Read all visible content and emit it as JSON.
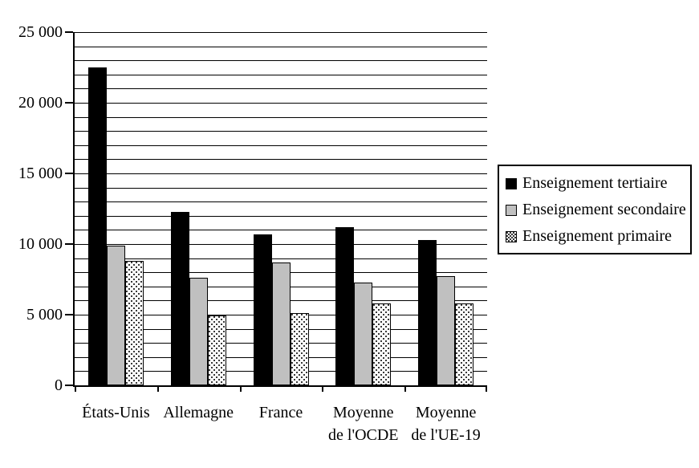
{
  "figure": {
    "background": "#ffffff"
  },
  "chart_data": {
    "type": "bar",
    "title": "",
    "xlabel": "",
    "ylabel": "",
    "categories": [
      "États-Unis",
      "Allemagne",
      "France",
      "Moyenne de l'OCDE",
      "Moyenne de l'UE-19"
    ],
    "category_label_lines": [
      [
        "États-Unis"
      ],
      [
        "Allemagne"
      ],
      [
        "France"
      ],
      [
        "Moyenne",
        "de l'OCDE"
      ],
      [
        "Moyenne",
        "de l'UE-19"
      ]
    ],
    "series": [
      {
        "name": "Enseignement tertiaire",
        "slug": "tertiaire",
        "fill": "#000000",
        "pattern": "solid",
        "values": [
          22500,
          12300,
          10700,
          11200,
          10300
        ]
      },
      {
        "name": "Enseignement secondaire",
        "slug": "secondaire",
        "fill": "#c0c0c0",
        "pattern": "solid",
        "values": [
          9900,
          7600,
          8700,
          7300,
          7700
        ]
      },
      {
        "name": "Enseignement primaire",
        "slug": "primaire",
        "fill": "#ffffff",
        "pattern": "dots",
        "values": [
          8800,
          4950,
          5100,
          5800,
          5800
        ]
      }
    ],
    "ylim": [
      0,
      25000
    ],
    "grid": true,
    "grid_step": 1000,
    "y_ticks": [
      {
        "value": 0,
        "label": "0"
      },
      {
        "value": 5000,
        "label": "5 000"
      },
      {
        "value": 10000,
        "label": "10 000"
      },
      {
        "value": 15000,
        "label": "15 000"
      },
      {
        "value": 20000,
        "label": "20 000"
      },
      {
        "value": 25000,
        "label": "25 000"
      }
    ],
    "legend_position": "right",
    "colors": {
      "axis": "#000000",
      "gridline": "#000000",
      "bar_border": "#000000"
    }
  }
}
